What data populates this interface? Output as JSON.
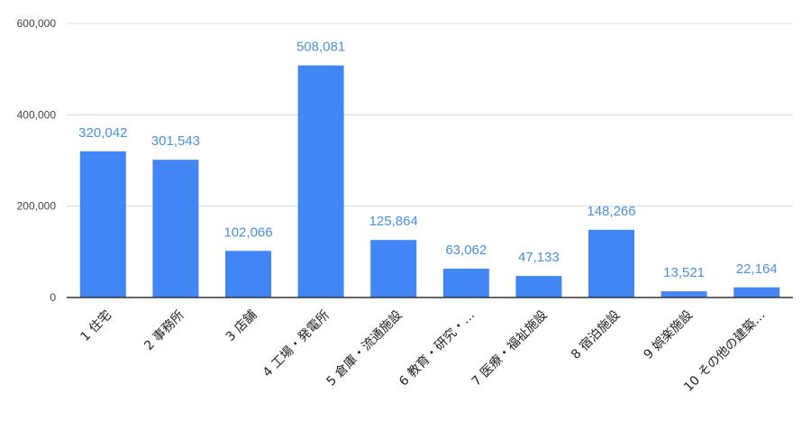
{
  "chart_data": {
    "type": "bar",
    "categories": [
      "1 住宅",
      "2 事務所",
      "3 店舗",
      "4 工場・発電所",
      "5 倉庫・流通施設",
      "6 教育・研究・…",
      "7 医療・福祉施設",
      "8 宿泊施設",
      "9 娯楽施設",
      "10 その他の建築…"
    ],
    "values": [
      320042,
      301543,
      102066,
      508081,
      125864,
      63062,
      47133,
      148266,
      13521,
      22164
    ],
    "data_labels": [
      "320,042",
      "301,543",
      "102,066",
      "508,081",
      "125,864",
      "63,062",
      "47,133",
      "148,266",
      "13,521",
      "22,164"
    ],
    "y_ticks": [
      0,
      200000,
      400000,
      600000
    ],
    "y_tick_labels": [
      "0",
      "200,000",
      "400,000",
      "600,000"
    ],
    "ylim": [
      0,
      600000
    ],
    "title": "",
    "xlabel": "",
    "ylabel": "",
    "grid": true,
    "bar_color": "#4285f4",
    "label_color": "#4a90e2"
  }
}
